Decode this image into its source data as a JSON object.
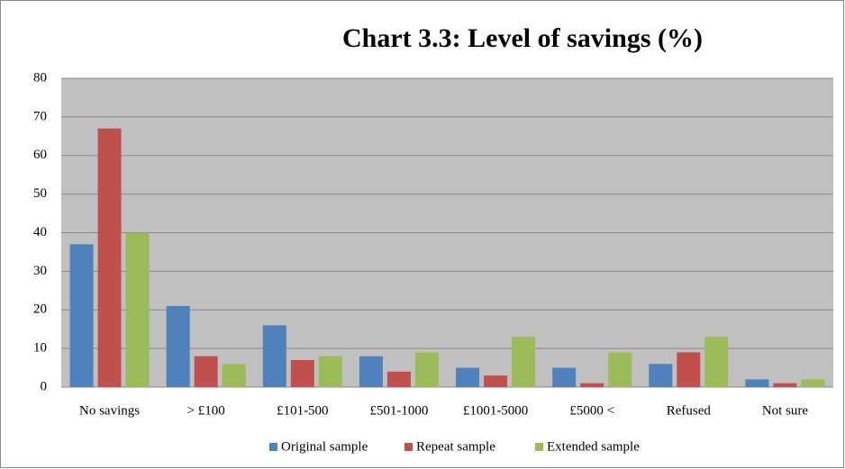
{
  "chart_data": {
    "type": "bar",
    "title": "Chart 3.3: Level of savings (%)",
    "categories": [
      "No savings",
      "> £100",
      "£101-500",
      "£501-1000",
      "£1001-5000",
      "£5000 <",
      "Refused",
      "Not sure"
    ],
    "series": [
      {
        "name": "Original sample",
        "color": "#4f81bd",
        "values": [
          37,
          21,
          16,
          8,
          5,
          5,
          6,
          2
        ]
      },
      {
        "name": "Repeat sample",
        "color": "#c0504d",
        "values": [
          67,
          8,
          7,
          4,
          3,
          1,
          9,
          1
        ]
      },
      {
        "name": "Extended sample",
        "color": "#9bbb59",
        "values": [
          40,
          6,
          8,
          9,
          13,
          9,
          13,
          2
        ]
      }
    ],
    "ylim": [
      0,
      80
    ],
    "yticks": [
      0,
      10,
      20,
      30,
      40,
      50,
      60,
      70,
      80
    ],
    "grid": true,
    "legend": "bottom"
  }
}
